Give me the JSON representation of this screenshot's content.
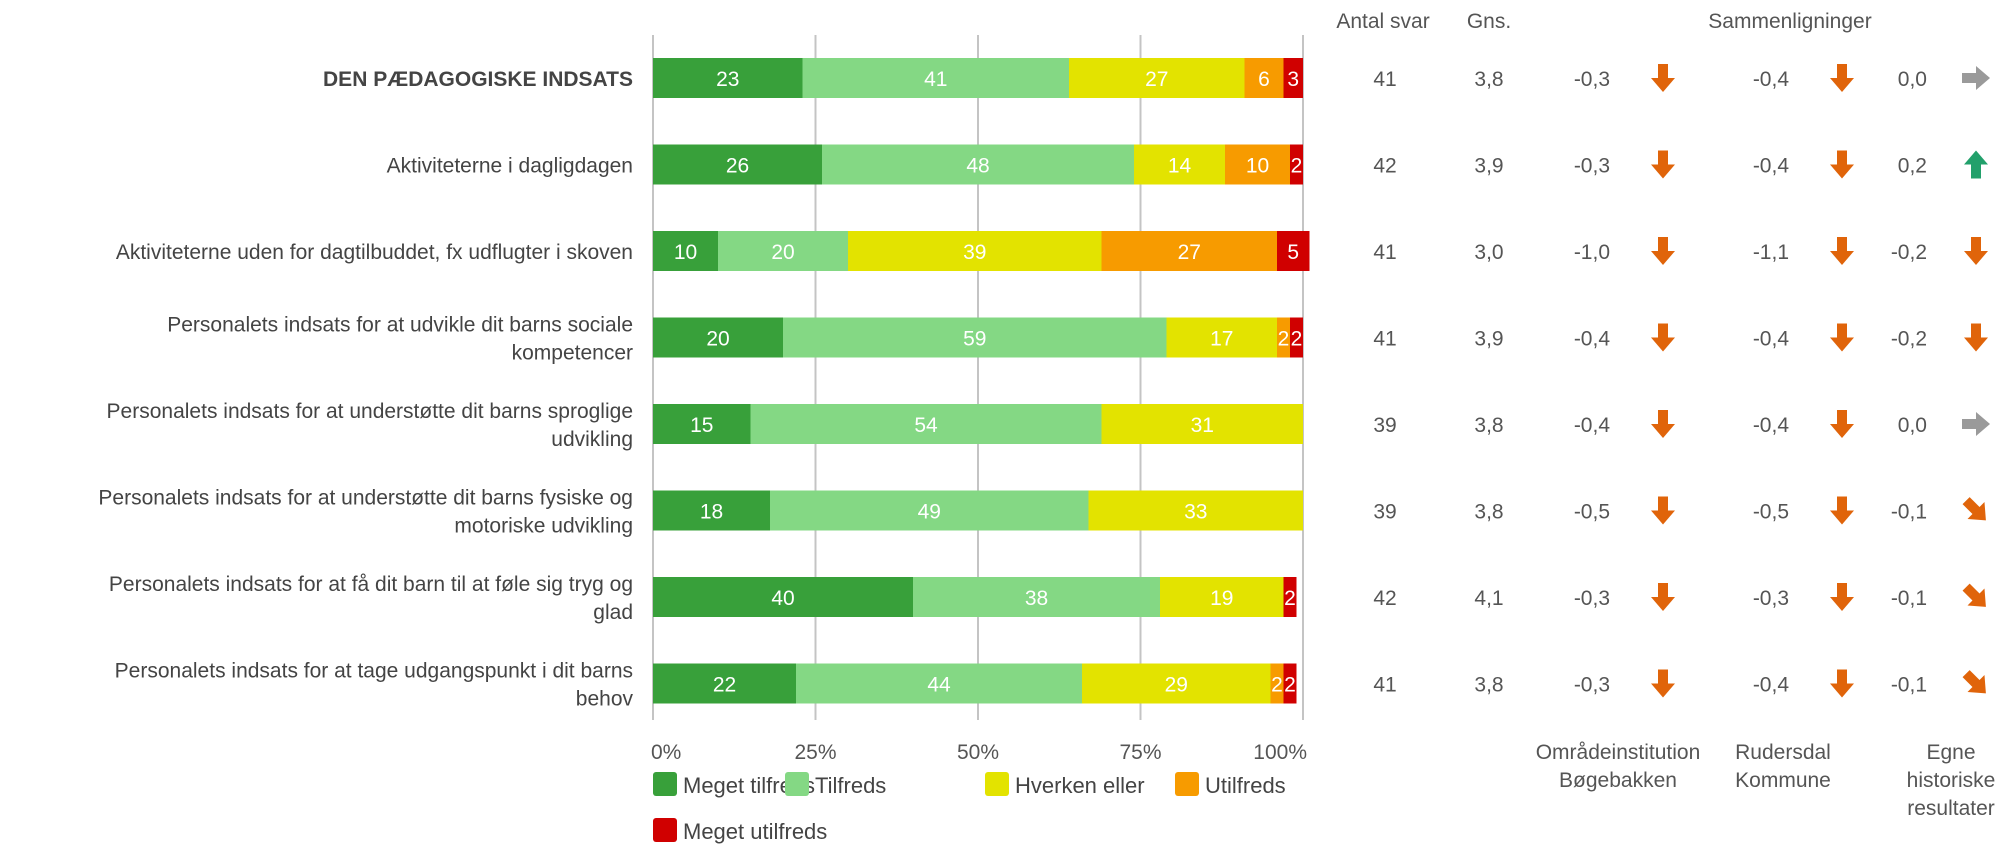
{
  "colors": {
    "meget_tilfreds": "#38a03a",
    "tilfreds": "#84d884",
    "hverken_eller": "#e3e300",
    "utilfreds": "#f79b00",
    "meget_utilfreds": "#d00000",
    "arrow_down": "#e0640a",
    "arrow_up": "#22a06b",
    "arrow_flat": "#9a9a9a"
  },
  "headers": {
    "antal": "Antal svar",
    "gns": "Gns.",
    "sammen": "Sammenligninger"
  },
  "comparison_footers": [
    [
      "Områdeinstitution",
      "Bøgebakken"
    ],
    [
      "Rudersdal",
      "Kommune"
    ],
    [
      "Egne",
      "historiske",
      "resultater"
    ]
  ],
  "chart_data": {
    "type": "bar",
    "orientation": "horizontal",
    "stacked": true,
    "xlim": [
      0,
      100
    ],
    "x_ticks": [
      "0%",
      "25%",
      "50%",
      "75%",
      "100%"
    ],
    "grid": true,
    "legend_position": "bottom",
    "categories": [
      [
        "DEN PÆDAGOGISKE INDSATS"
      ],
      [
        "Aktiviteterne i dagligdagen"
      ],
      [
        "Aktiviteterne uden for dagtilbuddet, fx udflugter i skoven"
      ],
      [
        "Personalets indsats for at udvikle dit barns sociale",
        "kompetencer"
      ],
      [
        "Personalets indsats for at understøtte dit barns sproglige",
        "udvikling"
      ],
      [
        "Personalets indsats for at understøtte dit barns fysiske og",
        "motoriske udvikling"
      ],
      [
        "Personalets indsats for at få dit barn til at føle sig tryg og",
        "glad"
      ],
      [
        "Personalets indsats for at tage udgangspunkt i dit barns",
        "behov"
      ]
    ],
    "bold_rows": [
      0
    ],
    "series": [
      {
        "name": "Meget tilfreds",
        "color_key": "meget_tilfreds",
        "values": [
          23,
          26,
          10,
          20,
          15,
          18,
          40,
          22
        ]
      },
      {
        "name": "Tilfreds",
        "color_key": "tilfreds",
        "values": [
          41,
          48,
          20,
          59,
          54,
          49,
          38,
          44
        ]
      },
      {
        "name": "Hverken eller",
        "color_key": "hverken_eller",
        "values": [
          27,
          14,
          39,
          17,
          31,
          33,
          19,
          29
        ]
      },
      {
        "name": "Utilfreds",
        "color_key": "utilfreds",
        "values": [
          6,
          10,
          27,
          2,
          0,
          0,
          0,
          2
        ]
      },
      {
        "name": "Meget utilfreds",
        "color_key": "meget_utilfreds",
        "values": [
          3,
          2,
          5,
          2,
          0,
          0,
          2,
          2
        ]
      }
    ],
    "antal_svar": [
      41,
      42,
      41,
      41,
      39,
      39,
      42,
      41
    ],
    "gns": [
      "3,8",
      "3,9",
      "3,0",
      "3,9",
      "3,8",
      "3,8",
      "4,1",
      "3,8"
    ],
    "comparisons": [
      [
        {
          "value": "-0,3",
          "icon": "arrow-down-icon"
        },
        {
          "value": "-0,4",
          "icon": "arrow-down-icon"
        },
        {
          "value": "0,0",
          "icon": "arrow-right-icon"
        }
      ],
      [
        {
          "value": "-0,3",
          "icon": "arrow-down-icon"
        },
        {
          "value": "-0,4",
          "icon": "arrow-down-icon"
        },
        {
          "value": "0,2",
          "icon": "arrow-up-icon"
        }
      ],
      [
        {
          "value": "-1,0",
          "icon": "arrow-down-icon"
        },
        {
          "value": "-1,1",
          "icon": "arrow-down-icon"
        },
        {
          "value": "-0,2",
          "icon": "arrow-down-icon"
        }
      ],
      [
        {
          "value": "-0,4",
          "icon": "arrow-down-icon"
        },
        {
          "value": "-0,4",
          "icon": "arrow-down-icon"
        },
        {
          "value": "-0,2",
          "icon": "arrow-down-icon"
        }
      ],
      [
        {
          "value": "-0,4",
          "icon": "arrow-down-icon"
        },
        {
          "value": "-0,4",
          "icon": "arrow-down-icon"
        },
        {
          "value": "0,0",
          "icon": "arrow-right-icon"
        }
      ],
      [
        {
          "value": "-0,5",
          "icon": "arrow-down-icon"
        },
        {
          "value": "-0,5",
          "icon": "arrow-down-icon"
        },
        {
          "value": "-0,1",
          "icon": "arrow-down-right-icon"
        }
      ],
      [
        {
          "value": "-0,3",
          "icon": "arrow-down-icon"
        },
        {
          "value": "-0,3",
          "icon": "arrow-down-icon"
        },
        {
          "value": "-0,1",
          "icon": "arrow-down-right-icon"
        }
      ],
      [
        {
          "value": "-0,3",
          "icon": "arrow-down-icon"
        },
        {
          "value": "-0,4",
          "icon": "arrow-down-icon"
        },
        {
          "value": "-0,1",
          "icon": "arrow-down-right-icon"
        }
      ]
    ]
  }
}
